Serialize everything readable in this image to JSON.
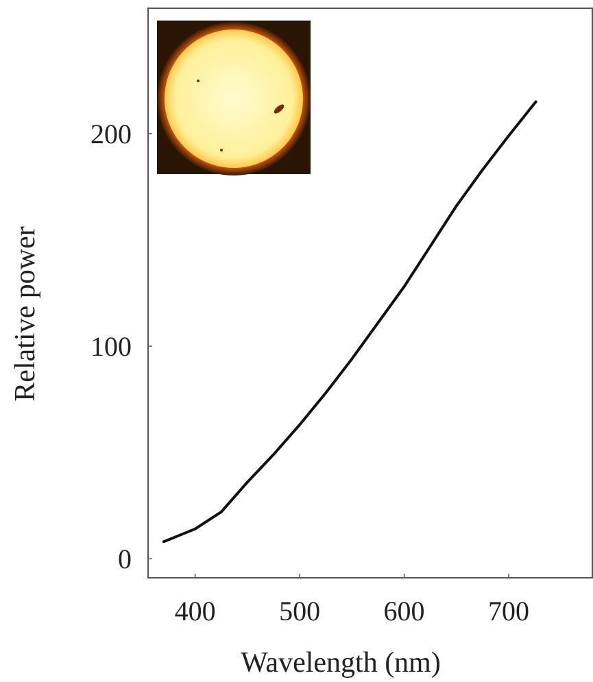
{
  "chart_data": {
    "type": "line",
    "x_label": "Wavelength (nm)",
    "y_label": "Relative power",
    "x": [
      370,
      400,
      425,
      450,
      475,
      500,
      525,
      550,
      575,
      600,
      625,
      650,
      675,
      700,
      726
    ],
    "series": [
      {
        "color": "#111111",
        "values": [
          8,
          14,
          22,
          36,
          49,
          63,
          78,
          94,
          111,
          128,
          147,
          166,
          183,
          199,
          215
        ]
      }
    ],
    "xlim": [
      355,
      780
    ],
    "ylim": [
      -9,
      259
    ],
    "xticks": [
      400,
      500,
      600,
      700
    ],
    "yticks": [
      0,
      100,
      200
    ]
  }
}
